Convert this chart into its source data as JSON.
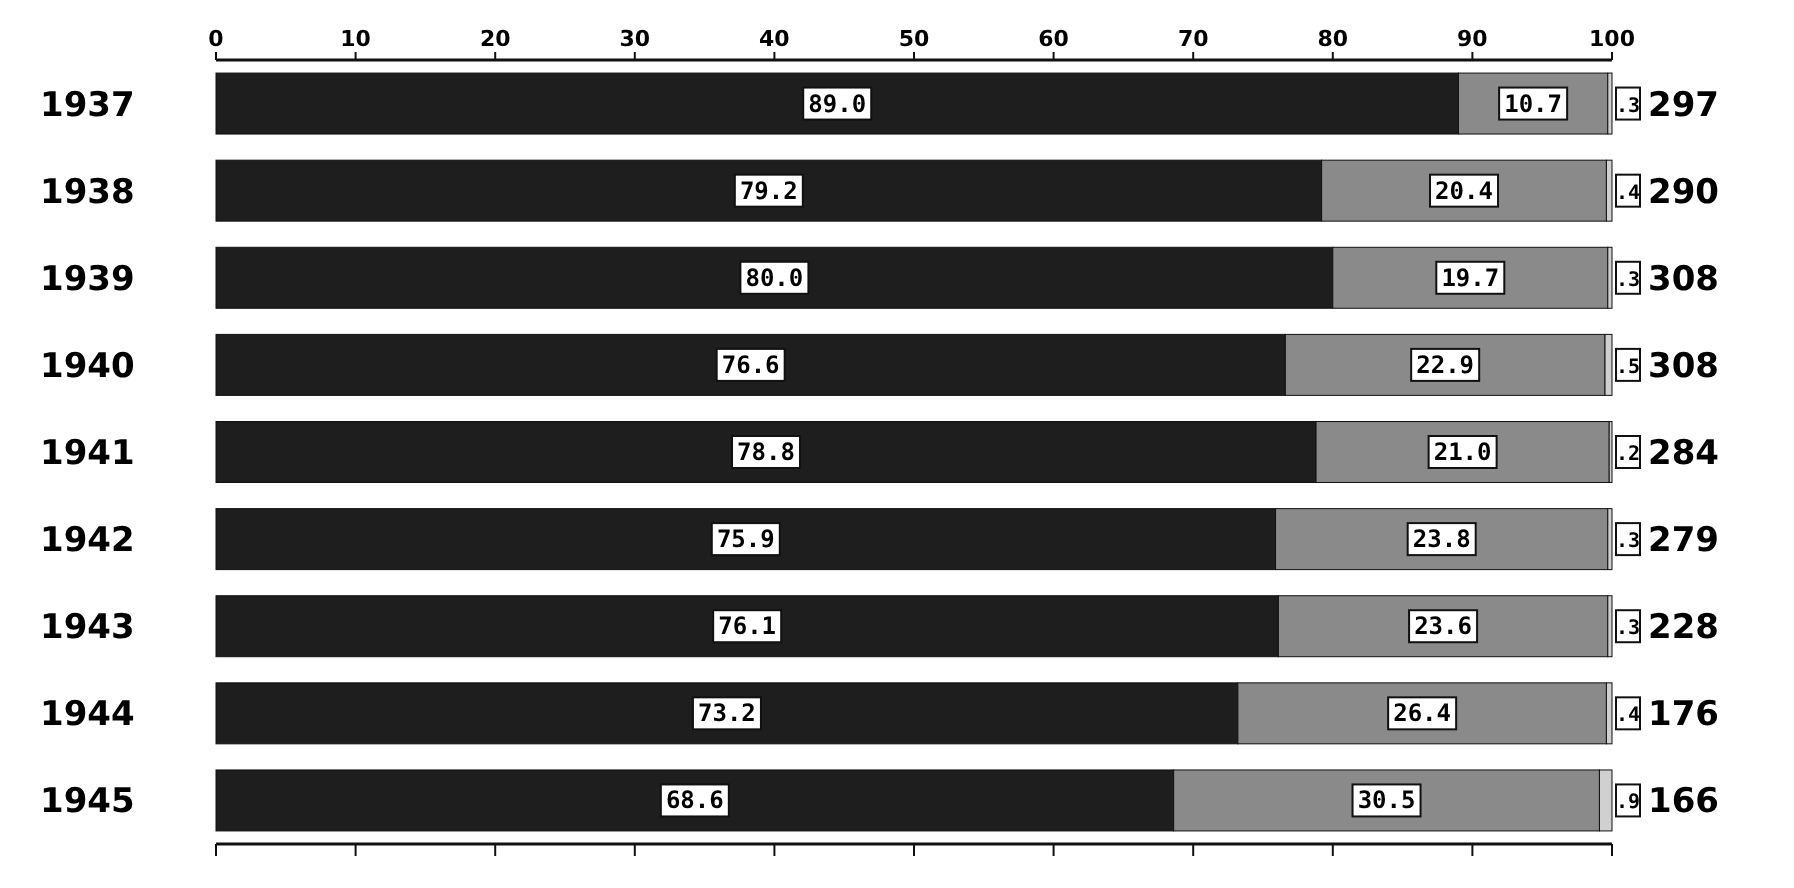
{
  "chart_data": {
    "type": "bar",
    "orientation": "horizontal",
    "stacked": true,
    "categories": [
      "1937",
      "1938",
      "1939",
      "1940",
      "1941",
      "1942",
      "1943",
      "1944",
      "1945"
    ],
    "series": [
      {
        "color": "#1e1e1e",
        "values": [
          89.0,
          79.2,
          80.0,
          76.6,
          78.8,
          75.9,
          76.1,
          73.2,
          68.6
        ],
        "value_labels": [
          "89.0",
          "79.2",
          "80.0",
          "76.6",
          "78.8",
          "75.9",
          "76.1",
          "73.2",
          "68.6"
        ]
      },
      {
        "color": "#8a8a8a",
        "values": [
          10.7,
          20.4,
          19.7,
          22.9,
          21.0,
          23.8,
          23.6,
          26.4,
          30.5
        ],
        "value_labels": [
          "10.7",
          "20.4",
          "19.7",
          "22.9",
          "21.0",
          "23.8",
          "23.6",
          "26.4",
          "30.5"
        ]
      },
      {
        "color": "#d0d0d0",
        "values": [
          0.3,
          0.4,
          0.3,
          0.5,
          0.2,
          0.3,
          0.3,
          0.4,
          0.9
        ],
        "value_labels": [
          ".3",
          ".4",
          ".3",
          ".5",
          ".2",
          ".3",
          ".3",
          ".4",
          ".9"
        ]
      }
    ],
    "xlim": [
      0,
      100
    ],
    "xticks": [
      0,
      10,
      20,
      30,
      40,
      50,
      60,
      70,
      80,
      90,
      100
    ],
    "grid": false,
    "annotations": [
      "297",
      "290",
      "308",
      "308",
      "284",
      "279",
      "228",
      "176",
      "166"
    ]
  }
}
